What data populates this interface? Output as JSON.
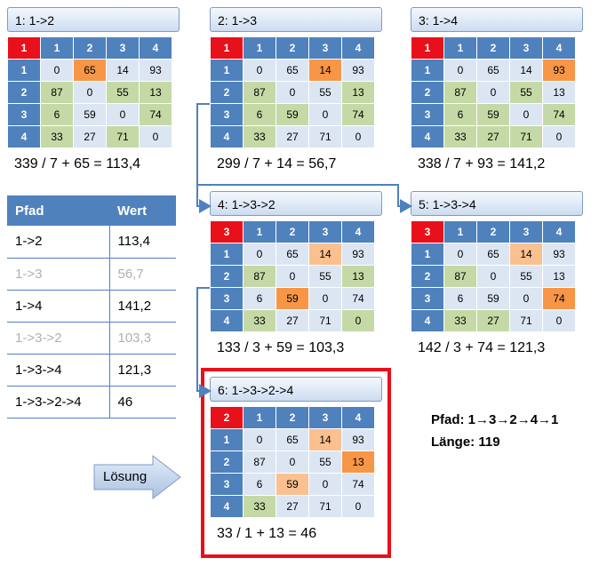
{
  "nodes": [
    {
      "title": "1:  1->2",
      "corner": "1",
      "headers": [
        "1",
        "2",
        "3",
        "4"
      ],
      "rows": [
        [
          "1",
          "0",
          "65",
          "14",
          "93"
        ],
        [
          "2",
          "87",
          "0",
          "55",
          "13"
        ],
        [
          "3",
          "6",
          "59",
          "0",
          "74"
        ],
        [
          "4",
          "33",
          "27",
          "71",
          "0"
        ]
      ],
      "cellColors": [
        [
          "p",
          "o",
          "p",
          "p"
        ],
        [
          "g",
          "p",
          "g",
          "g"
        ],
        [
          "g",
          "p",
          "p",
          "g"
        ],
        [
          "g",
          "p",
          "g",
          "p"
        ]
      ],
      "calc": "339 / 7 + 65 = 113,4"
    },
    {
      "title": "2:  1->3",
      "corner": "1",
      "headers": [
        "1",
        "2",
        "3",
        "4"
      ],
      "rows": [
        [
          "1",
          "0",
          "65",
          "14",
          "93"
        ],
        [
          "2",
          "87",
          "0",
          "55",
          "13"
        ],
        [
          "3",
          "6",
          "59",
          "0",
          "74"
        ],
        [
          "4",
          "33",
          "27",
          "71",
          "0"
        ]
      ],
      "cellColors": [
        [
          "p",
          "p",
          "o",
          "p"
        ],
        [
          "g",
          "p",
          "p",
          "g"
        ],
        [
          "g",
          "g",
          "p",
          "g"
        ],
        [
          "g",
          "p",
          "p",
          "p"
        ]
      ],
      "calc": "299 / 7 + 14 = 56,7"
    },
    {
      "title": "3:  1->4",
      "corner": "1",
      "headers": [
        "1",
        "2",
        "3",
        "4"
      ],
      "rows": [
        [
          "1",
          "0",
          "65",
          "14",
          "93"
        ],
        [
          "2",
          "87",
          "0",
          "55",
          "13"
        ],
        [
          "3",
          "6",
          "59",
          "0",
          "74"
        ],
        [
          "4",
          "33",
          "27",
          "71",
          "0"
        ]
      ],
      "cellColors": [
        [
          "p",
          "p",
          "p",
          "o"
        ],
        [
          "g",
          "p",
          "g",
          "p"
        ],
        [
          "g",
          "g",
          "p",
          "g"
        ],
        [
          "g",
          "g",
          "g",
          "p"
        ]
      ],
      "calc": "338 / 7 + 93 = 141,2"
    },
    {
      "title": "4:  1->3->2",
      "corner": "3",
      "headers": [
        "1",
        "2",
        "3",
        "4"
      ],
      "rows": [
        [
          "1",
          "0",
          "65",
          "14",
          "93"
        ],
        [
          "2",
          "87",
          "0",
          "55",
          "13"
        ],
        [
          "3",
          "6",
          "59",
          "0",
          "74"
        ],
        [
          "4",
          "33",
          "27",
          "71",
          "0"
        ]
      ],
      "cellColors": [
        [
          "p",
          "p",
          "lo",
          "p"
        ],
        [
          "g",
          "p",
          "p",
          "g"
        ],
        [
          "p",
          "o",
          "p",
          "p"
        ],
        [
          "g",
          "p",
          "p",
          "g"
        ]
      ],
      "calc": "133 / 3 + 59 = 103,3"
    },
    {
      "title": "5:  1->3->4",
      "corner": "3",
      "headers": [
        "1",
        "2",
        "3",
        "4"
      ],
      "rows": [
        [
          "1",
          "0",
          "65",
          "14",
          "93"
        ],
        [
          "2",
          "87",
          "0",
          "55",
          "13"
        ],
        [
          "3",
          "6",
          "59",
          "0",
          "74"
        ],
        [
          "4",
          "33",
          "27",
          "71",
          "0"
        ]
      ],
      "cellColors": [
        [
          "p",
          "p",
          "lo",
          "p"
        ],
        [
          "g",
          "p",
          "p",
          "p"
        ],
        [
          "p",
          "p",
          "p",
          "o"
        ],
        [
          "g",
          "g",
          "p",
          "p"
        ]
      ],
      "calc": "142 / 3 + 74  = 121,3"
    },
    {
      "title": "6:  1->3->2->4",
      "corner": "2",
      "headers": [
        "1",
        "2",
        "3",
        "4"
      ],
      "rows": [
        [
          "1",
          "0",
          "65",
          "14",
          "93"
        ],
        [
          "2",
          "87",
          "0",
          "55",
          "13"
        ],
        [
          "3",
          "6",
          "59",
          "0",
          "74"
        ],
        [
          "4",
          "33",
          "27",
          "71",
          "0"
        ]
      ],
      "cellColors": [
        [
          "p",
          "p",
          "lo",
          "p"
        ],
        [
          "p",
          "p",
          "p",
          "o"
        ],
        [
          "p",
          "lo",
          "p",
          "p"
        ],
        [
          "g",
          "p",
          "p",
          "p"
        ]
      ],
      "calc": "33 / 1 + 13 = 46"
    }
  ],
  "pathTable": {
    "headers": [
      "Pfad",
      "Wert"
    ],
    "rows": [
      {
        "pfad": "1->2",
        "wert": "113,4",
        "dim": false
      },
      {
        "pfad": "1->3",
        "wert": "56,7",
        "dim": true
      },
      {
        "pfad": "1->4",
        "wert": "141,2",
        "dim": false
      },
      {
        "pfad": "1->3->2",
        "wert": "103,3",
        "dim": true
      },
      {
        "pfad": "1->3->4",
        "wert": "121,3",
        "dim": false
      },
      {
        "pfad": "1->3->2->4",
        "wert": "46",
        "dim": false
      }
    ]
  },
  "solution": {
    "label": "Lösung",
    "pfadLabel": "Pfad:",
    "pfadValue": "1→3→2→4→1",
    "laengeLabel": "Länge:",
    "laengeValue": "119"
  },
  "colors": {
    "corner": "#e8101a",
    "header": "#4f81bd",
    "plain": "#dce6f2",
    "green": "#c5d9a6",
    "orange": "#f79646",
    "lightOrange": "#fac090",
    "connector": "#4f81bd",
    "solutionBorder": "#e8101a"
  }
}
